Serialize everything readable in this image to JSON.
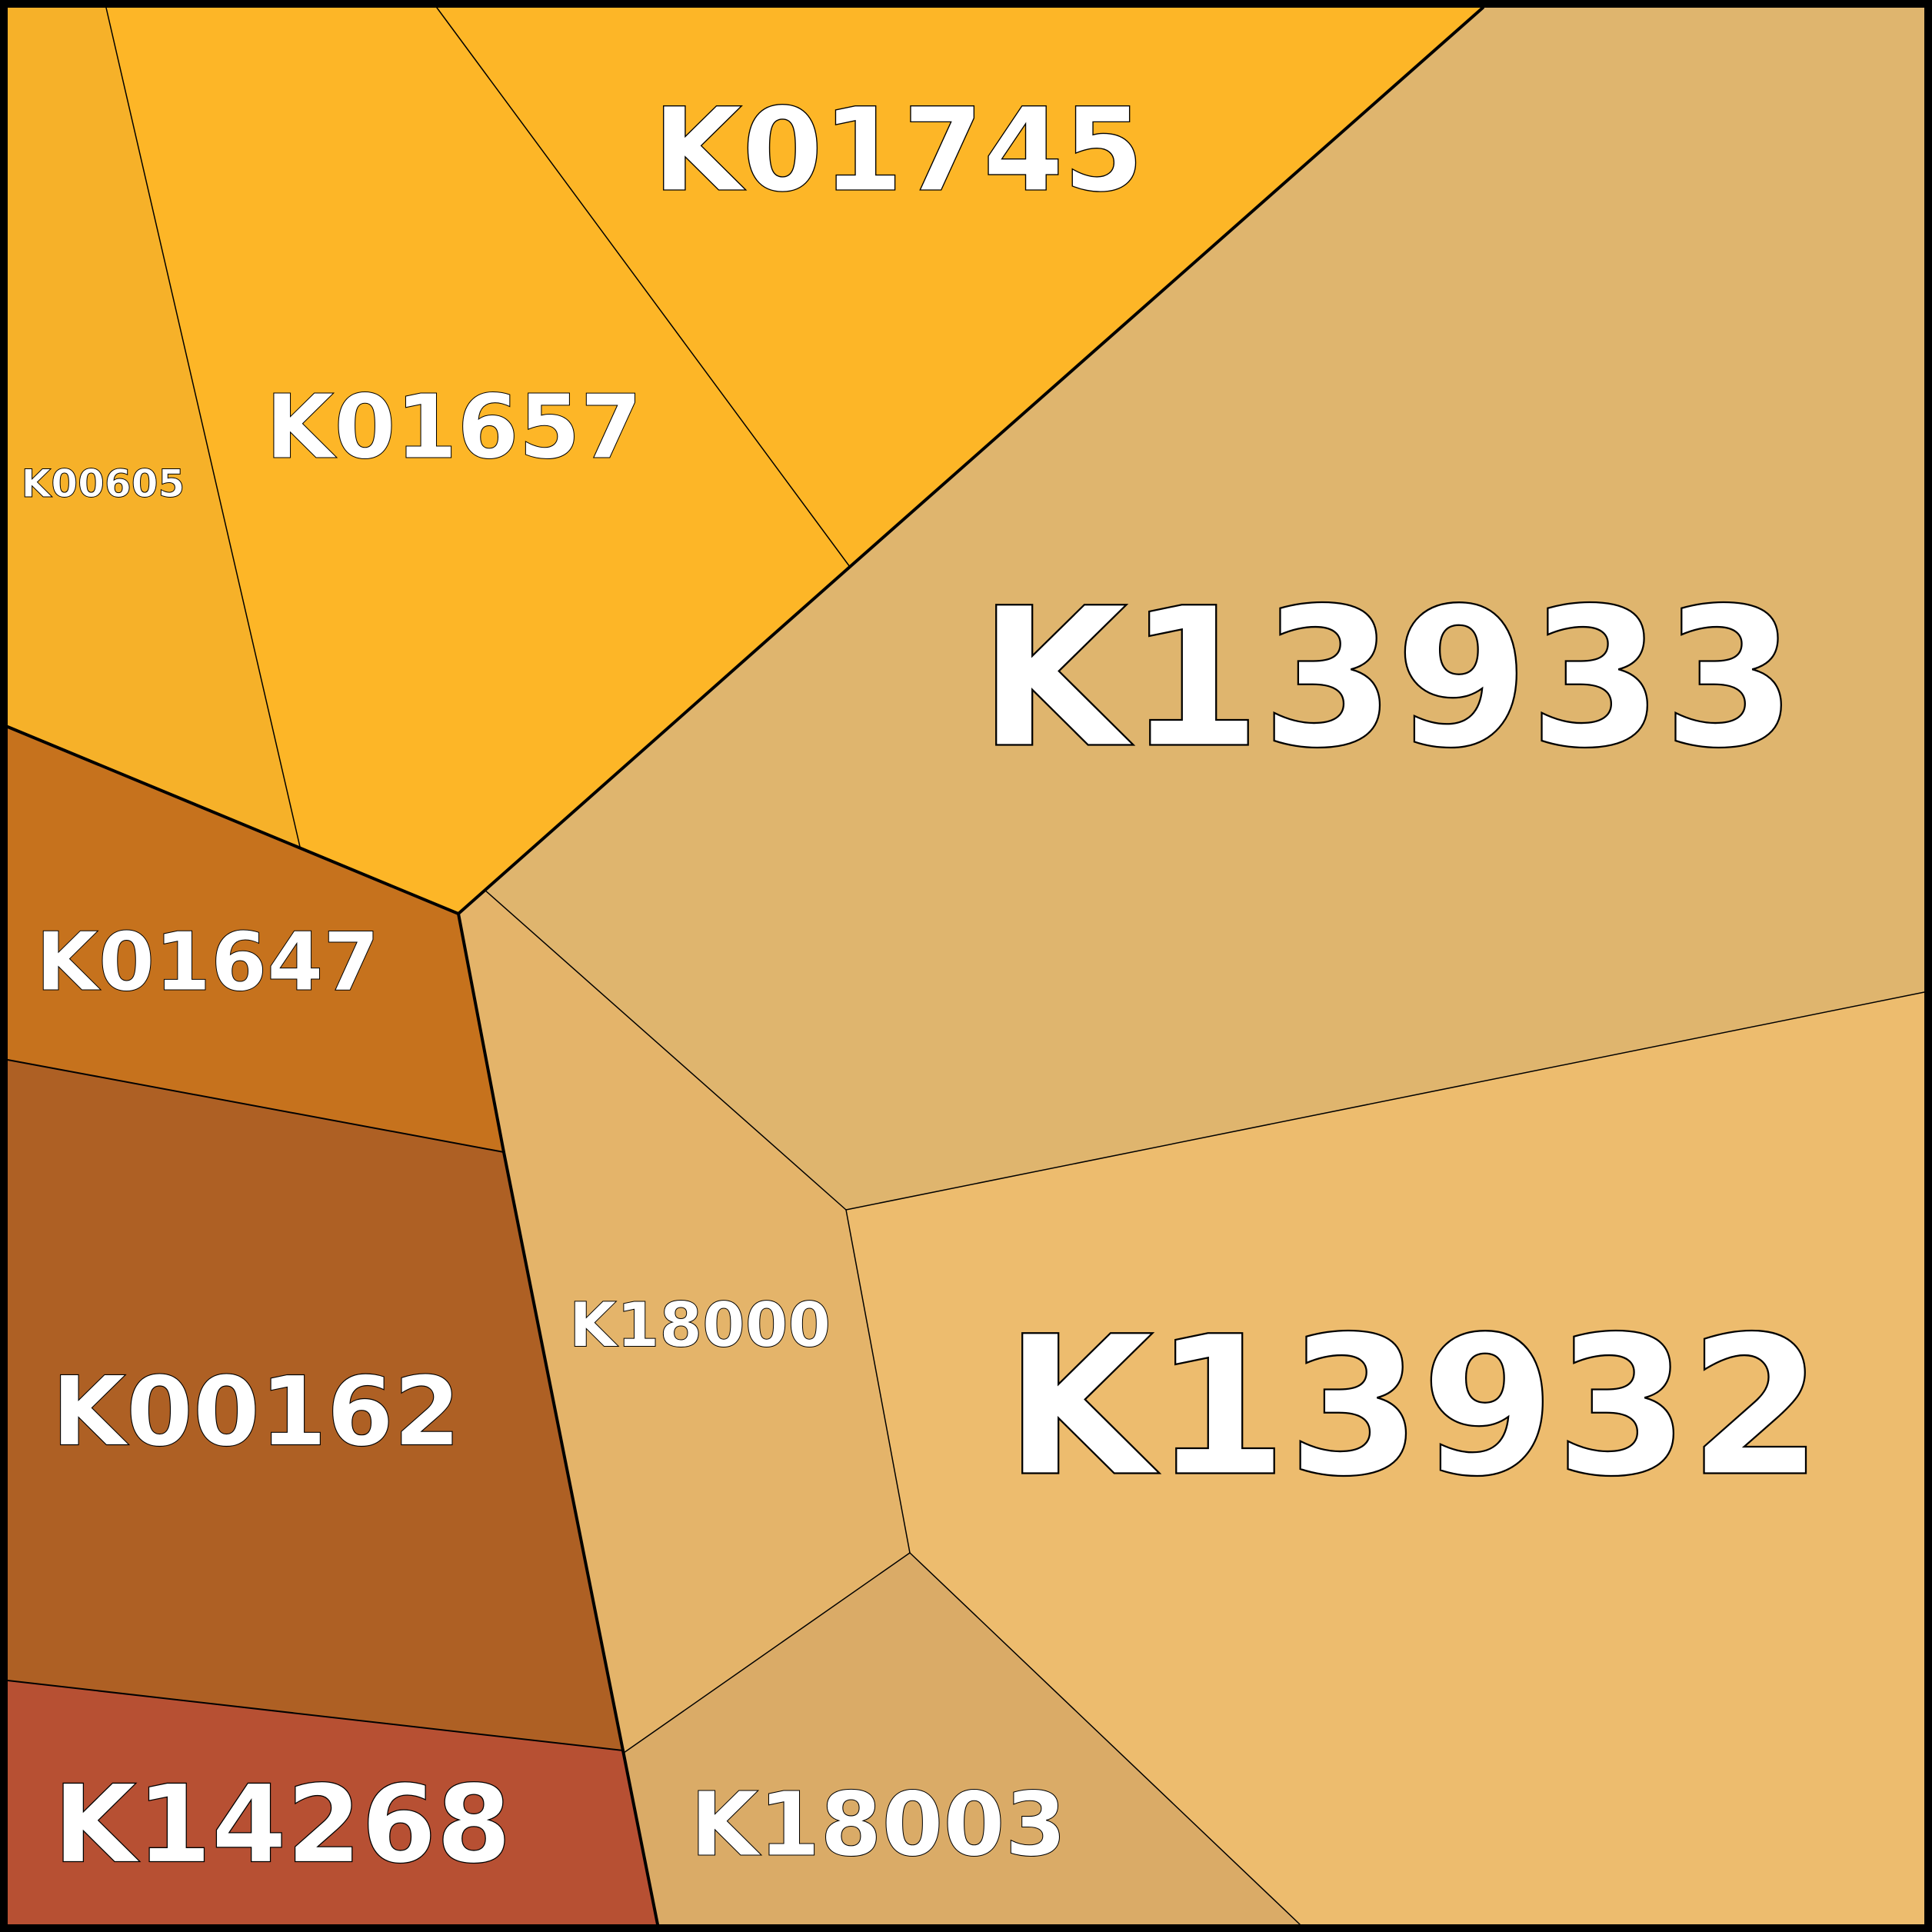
{
  "chart_data": {
    "type": "voronoi-treemap",
    "title": "",
    "cells": [
      {
        "label": "K01745",
        "color": "#fdb627"
      },
      {
        "label": "K01657",
        "color": "#fdb627"
      },
      {
        "label": "K00605",
        "color": "#f6b129"
      },
      {
        "label": "K13933",
        "color": "#dfb56e"
      },
      {
        "label": "K01647",
        "color": "#c6721d"
      },
      {
        "label": "K00162",
        "color": "#ae6024"
      },
      {
        "label": "K18000",
        "color": "#e4b46a"
      },
      {
        "label": "K13932",
        "color": "#edbc6e"
      },
      {
        "label": "K14268",
        "color": "#b75033"
      },
      {
        "label": "K18003",
        "color": "#daab67"
      }
    ],
    "border_color": "#000000"
  }
}
